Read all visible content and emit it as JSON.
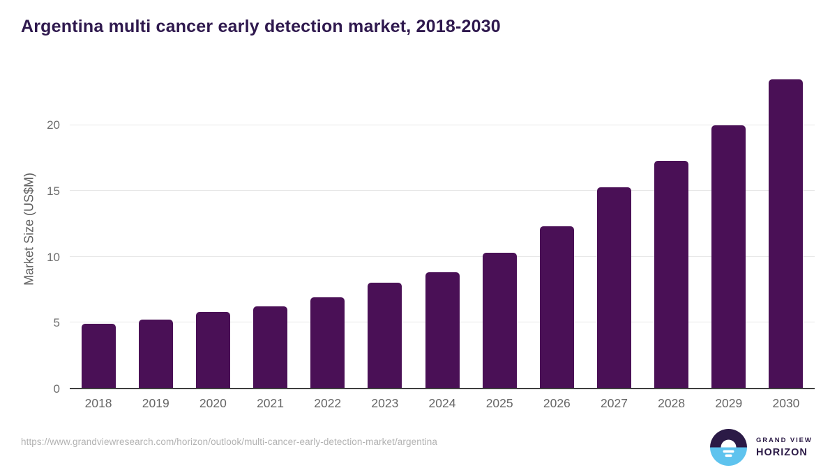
{
  "header": {
    "title": "Argentina multi cancer early detection market, 2018-2030"
  },
  "chart_data": {
    "type": "bar",
    "title": "Argentina multi cancer early detection market, 2018-2030",
    "categories": [
      "2018",
      "2019",
      "2020",
      "2021",
      "2022",
      "2023",
      "2024",
      "2025",
      "2026",
      "2027",
      "2028",
      "2029",
      "2030"
    ],
    "values": [
      4.9,
      5.2,
      5.8,
      6.2,
      6.9,
      8.0,
      8.8,
      10.3,
      12.3,
      15.3,
      17.3,
      20.0,
      23.5
    ],
    "xlabel": "",
    "ylabel": "Market Size (US$M)",
    "unit": "US$M",
    "yticks": [
      0,
      5,
      10,
      15,
      20
    ],
    "ylim": [
      0,
      24.3
    ],
    "grid": "horizontal",
    "legend": "none",
    "bar_color": "#4a1056"
  },
  "footer": {
    "source_url": "https://www.grandviewresearch.com/horizon/outlook/multi-cancer-early-detection-market/argentina",
    "brand": {
      "line1": "GRAND VIEW",
      "line2": "HORIZON"
    }
  },
  "colors": {
    "title_text": "#2f194e",
    "bar": "#4a1056",
    "axis_text": "#6e6e6e",
    "gridline": "#e7e7e7",
    "baseline": "#3f3f3f",
    "url_text": "#b2b2b2",
    "logo_dark": "#2b1a46",
    "logo_blue": "#5ec3ee"
  }
}
